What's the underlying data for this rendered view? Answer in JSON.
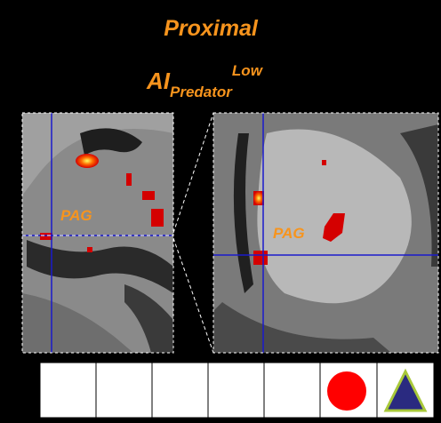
{
  "title": "Proximal",
  "subtitle": {
    "main": "AI",
    "subscript": "Predator",
    "superscript": "Low"
  },
  "panels": [
    {
      "label": "PAG"
    },
    {
      "label": "PAG"
    }
  ]
}
